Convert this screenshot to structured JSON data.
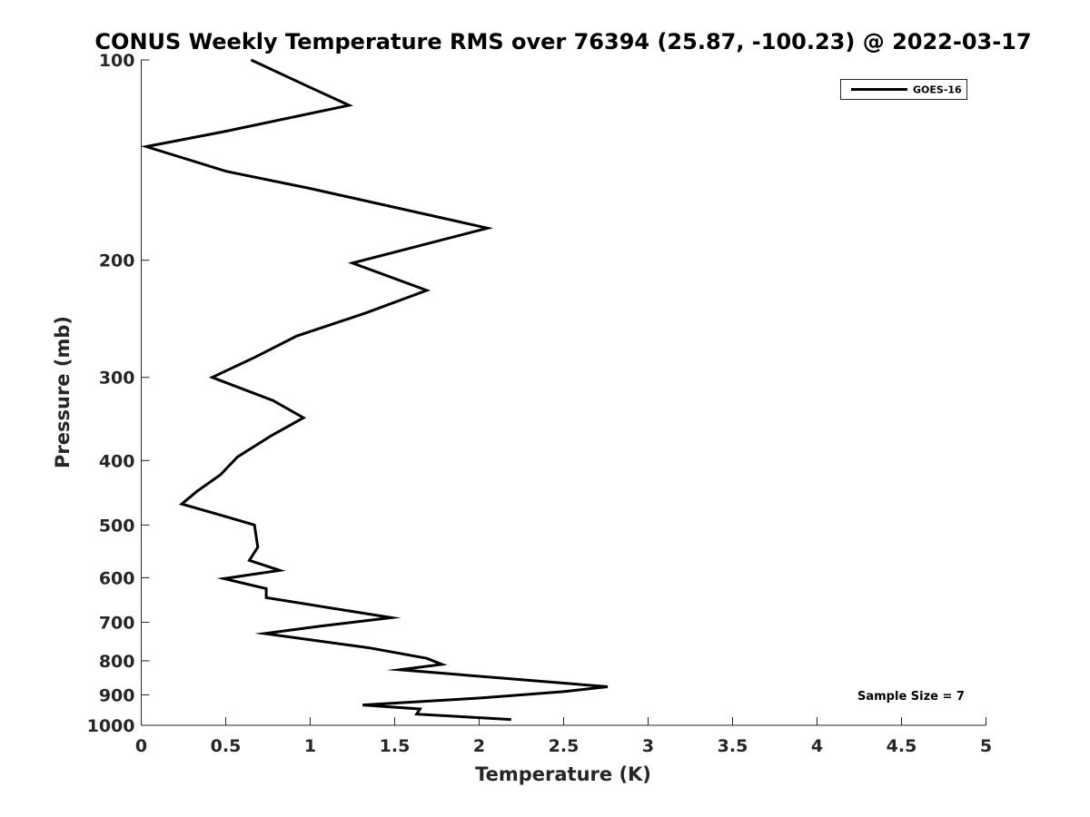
{
  "chart_data": {
    "type": "line",
    "title": "CONUS Weekly Temperature RMS over 76394 (25.87, -100.23) @ 2022-03-17",
    "xlabel": "Temperature (K)",
    "ylabel": "Pressure (mb)",
    "xlim": [
      0,
      5
    ],
    "ylim": [
      100,
      1000
    ],
    "y_scale": "log",
    "y_reversed": true,
    "x_ticks": [
      0,
      0.5,
      1,
      1.5,
      2,
      2.5,
      3,
      3.5,
      4,
      4.5,
      5
    ],
    "x_tick_labels": [
      "0",
      "0.5",
      "1",
      "1.5",
      "2",
      "2.5",
      "3",
      "3.5",
      "4",
      "4.5",
      "5"
    ],
    "y_ticks": [
      100,
      200,
      300,
      400,
      500,
      600,
      700,
      800,
      900,
      1000
    ],
    "y_tick_labels": [
      "100",
      "200",
      "300",
      "400",
      "500",
      "600",
      "700",
      "800",
      "900",
      "1000"
    ],
    "grid": false,
    "legend_position": "top-right",
    "annotation": "Sample Size = 7",
    "series": [
      {
        "name": "GOES-16",
        "color": "#000000",
        "points": [
          [
            0.65,
            100
          ],
          [
            1.0,
            110
          ],
          [
            1.23,
            117
          ],
          [
            0.5,
            128
          ],
          [
            0.03,
            135
          ],
          [
            0.5,
            147
          ],
          [
            1.0,
            156
          ],
          [
            2.05,
            179
          ],
          [
            1.25,
            202
          ],
          [
            1.69,
            222
          ],
          [
            1.33,
            240
          ],
          [
            0.92,
            260
          ],
          [
            0.67,
            280
          ],
          [
            0.42,
            300
          ],
          [
            0.78,
            325
          ],
          [
            0.96,
            345
          ],
          [
            0.77,
            367
          ],
          [
            0.57,
            395
          ],
          [
            0.47,
            420
          ],
          [
            0.33,
            445
          ],
          [
            0.24,
            465
          ],
          [
            0.43,
            480
          ],
          [
            0.67,
            500
          ],
          [
            0.68,
            520
          ],
          [
            0.69,
            540
          ],
          [
            0.64,
            565
          ],
          [
            0.82,
            585
          ],
          [
            0.49,
            602
          ],
          [
            0.74,
            623
          ],
          [
            0.74,
            643
          ],
          [
            1.48,
            689
          ],
          [
            1.05,
            710
          ],
          [
            0.73,
            728
          ],
          [
            1.35,
            765
          ],
          [
            1.69,
            793
          ],
          [
            1.78,
            810
          ],
          [
            1.53,
            825
          ],
          [
            2.4,
            860
          ],
          [
            2.76,
            875
          ],
          [
            2.5,
            890
          ],
          [
            2.0,
            910
          ],
          [
            1.31,
            932
          ],
          [
            1.65,
            945
          ],
          [
            1.63,
            962
          ],
          [
            2.19,
            980
          ]
        ]
      }
    ]
  }
}
